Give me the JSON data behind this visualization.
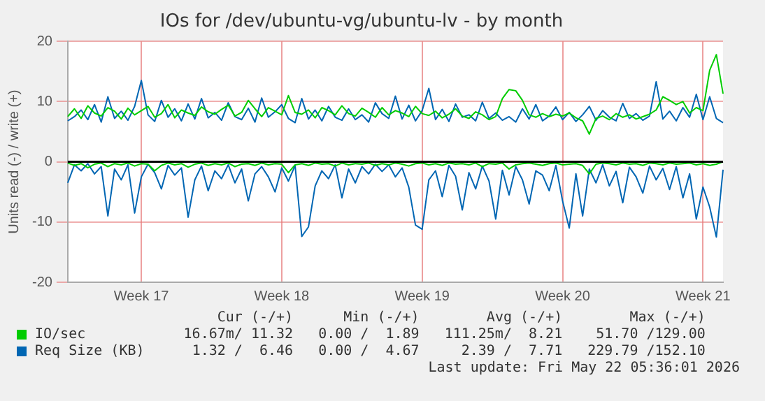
{
  "chart_data": {
    "type": "line",
    "title": "IOs for /dev/ubuntu-vg/ubuntu-lv - by month",
    "ylabel": "Units read (-) / write (+)",
    "categories": [
      null,
      null,
      null,
      null,
      null,
      null,
      null,
      null,
      null,
      null,
      null,
      "Week 17",
      null,
      null,
      null,
      null,
      null,
      null,
      null,
      null,
      null,
      null,
      null,
      null,
      null,
      null,
      null,
      null,
      null,
      null,
      null,
      null,
      "Week 18",
      null,
      null,
      null,
      null,
      null,
      null,
      null,
      null,
      null,
      null,
      null,
      null,
      null,
      null,
      null,
      null,
      null,
      null,
      null,
      null,
      "Week 19",
      null,
      null,
      null,
      null,
      null,
      null,
      null,
      null,
      null,
      null,
      null,
      null,
      null,
      null,
      null,
      null,
      null,
      null,
      null,
      null,
      "Week 20",
      null,
      null,
      null,
      null,
      null,
      null,
      null,
      null,
      null,
      null,
      null,
      null,
      null,
      null,
      null,
      null,
      null,
      null,
      null,
      null,
      "Week 21",
      null,
      null,
      null
    ],
    "ylim": [
      -20,
      20
    ],
    "yticks": [
      -20,
      -10,
      0,
      10,
      20
    ],
    "grid": true,
    "legend": "bottom",
    "ref_lines": [
      {
        "axis": "y",
        "value": 0,
        "color": "#000000"
      }
    ],
    "series": [
      {
        "name": "IO/sec",
        "color": "#00cc00",
        "values": [
          7.5,
          8.8,
          7.2,
          9.3,
          8.1,
          7.6,
          9.0,
          8.4,
          7.1,
          8.9,
          7.8,
          8.5,
          9.2,
          7.4,
          8.0,
          9.5,
          7.3,
          8.6,
          8.1,
          7.7,
          9.1,
          8.3,
          7.9,
          8.7,
          9.4,
          7.6,
          8.2,
          10.2,
          8.8,
          7.5,
          9.0,
          8.4,
          7.8,
          11.0,
          8.2,
          7.9,
          8.6,
          7.3,
          9.0,
          8.5,
          7.8,
          9.3,
          8.0,
          7.6,
          8.9,
          8.2,
          7.4,
          9.0,
          7.8,
          8.5,
          8.1,
          7.5,
          9.2,
          8.0,
          7.7,
          8.4,
          7.3,
          7.9,
          8.8,
          7.6,
          7.2,
          8.3,
          7.8,
          7.0,
          7.5,
          10.5,
          12.0,
          11.8,
          10.2,
          7.8,
          7.4,
          8.0,
          7.5,
          7.9,
          7.6,
          8.1,
          7.3,
          6.8,
          4.6,
          7.2,
          7.6,
          7.0,
          8.0,
          7.4,
          7.8,
          7.1,
          7.5,
          7.9,
          8.6,
          10.8,
          10.2,
          9.5,
          10.0,
          8.1,
          9.0,
          8.5,
          15.2,
          17.8,
          11.3
        ]
      },
      {
        "color": "#00cc00",
        "values": [
          -0.2,
          -0.6,
          -0.3,
          -1.0,
          -0.4,
          -0.2,
          -0.8,
          -0.3,
          -0.5,
          -0.2,
          -0.7,
          -0.3,
          -0.4,
          -1.5,
          -0.6,
          -0.2,
          -0.5,
          -0.3,
          -0.9,
          -0.4,
          -0.2,
          -0.6,
          -0.3,
          -0.5,
          -0.2,
          -0.8,
          -0.4,
          -0.3,
          -0.6,
          -0.2,
          -0.5,
          -0.3,
          -0.4,
          -1.8,
          -0.5,
          -0.3,
          -0.6,
          -0.2,
          -0.4,
          -0.3,
          -0.7,
          -0.2,
          -0.5,
          -0.3,
          -0.4,
          -0.2,
          -0.6,
          -0.3,
          -0.5,
          -0.2,
          -0.4,
          -0.7,
          -0.3,
          -0.2,
          -0.5,
          -0.3,
          -0.6,
          -0.2,
          -0.4,
          -0.3,
          -0.5,
          -0.2,
          -0.8,
          -0.3,
          -0.4,
          -0.2,
          -1.2,
          -0.5,
          -0.3,
          -0.2,
          -0.4,
          -0.6,
          -0.3,
          -0.2,
          -0.5,
          -0.4,
          -0.3,
          -0.6,
          -2.0,
          -0.4,
          -0.2,
          -0.3,
          -0.5,
          -0.2,
          -0.4,
          -0.3,
          -0.6,
          -0.2,
          -0.3,
          -0.5,
          -0.2,
          -0.4,
          -0.3,
          -0.2,
          -0.5,
          -0.3,
          -0.6,
          -0.4,
          0.0
        ]
      },
      {
        "name": "Req Size (KB)",
        "color": "#0066b3",
        "values": [
          6.8,
          7.5,
          8.6,
          7.0,
          9.5,
          6.6,
          10.8,
          7.2,
          8.4,
          6.9,
          9.2,
          13.5,
          7.8,
          6.7,
          10.2,
          7.4,
          8.8,
          6.8,
          9.6,
          7.1,
          10.5,
          7.3,
          8.2,
          6.9,
          9.8,
          7.5,
          7.0,
          8.9,
          6.6,
          10.6,
          7.4,
          8.3,
          9.5,
          7.2,
          6.5,
          10.5,
          7.1,
          8.6,
          6.8,
          9.2,
          7.4,
          6.9,
          8.8,
          7.0,
          7.8,
          6.6,
          9.8,
          8.0,
          7.2,
          10.9,
          7.1,
          9.4,
          6.8,
          8.5,
          12.2,
          7.0,
          8.7,
          6.7,
          9.6,
          7.4,
          7.8,
          6.8,
          9.9,
          7.2,
          8.1,
          6.9,
          7.5,
          6.6,
          8.8,
          7.1,
          9.5,
          6.8,
          7.6,
          9.1,
          7.0,
          8.2,
          6.7,
          7.8,
          9.2,
          6.9,
          8.5,
          7.4,
          6.8,
          9.7,
          7.2,
          8.0,
          6.9,
          7.6,
          13.3,
          7.1,
          8.4,
          6.8,
          9.0,
          7.4,
          11.2,
          7.0,
          10.8,
          7.2,
          6.5
        ]
      },
      {
        "color": "#0066b3",
        "values": [
          -3.5,
          -0.5,
          -1.5,
          -0.3,
          -2.0,
          -0.8,
          -9.0,
          -1.2,
          -3.0,
          -0.5,
          -8.5,
          -2.5,
          -0.4,
          -1.8,
          -4.5,
          -0.6,
          -2.2,
          -1.0,
          -9.2,
          -3.0,
          -0.7,
          -4.8,
          -1.5,
          -2.8,
          -0.5,
          -3.5,
          -1.2,
          -6.5,
          -2.0,
          -0.8,
          -2.5,
          -5.0,
          -1.0,
          -3.2,
          -0.6,
          -12.4,
          -10.8,
          -4.0,
          -1.5,
          -2.8,
          -0.5,
          -6.0,
          -1.2,
          -3.5,
          -0.8,
          -2.0,
          -0.4,
          -1.6,
          -0.5,
          -2.5,
          -1.0,
          -4.2,
          -10.5,
          -11.2,
          -3.0,
          -1.5,
          -5.8,
          -0.6,
          -2.4,
          -8.0,
          -1.8,
          -4.5,
          -0.7,
          -3.2,
          -9.5,
          -1.4,
          -5.5,
          -0.8,
          -3.0,
          -7.0,
          -1.5,
          -2.2,
          -4.8,
          -0.6,
          -6.5,
          -11.0,
          -2.0,
          -9.0,
          -1.2,
          -3.5,
          -0.5,
          -4.0,
          -1.6,
          -6.8,
          -0.9,
          -2.5,
          -5.2,
          -0.7,
          -3.0,
          -1.1,
          -4.6,
          -0.8,
          -6.0,
          -2.0,
          -9.5,
          -4.2,
          -7.5,
          -12.5,
          -1.3
        ]
      }
    ],
    "annotations": [
      "Cur (-/+)",
      "Min (-/+)",
      "Avg (-/+)",
      "Max (-/+)",
      "16.67m/ 11.32",
      "0.00 /  1.89",
      "111.25m/  8.21",
      "51.70 /129.00",
      "1.32 /  6.46",
      "0.00 /  4.67",
      "2.39 /  7.71",
      "229.79 /152.10",
      "Last update: Fri May 22 05:36:01 2026"
    ]
  }
}
